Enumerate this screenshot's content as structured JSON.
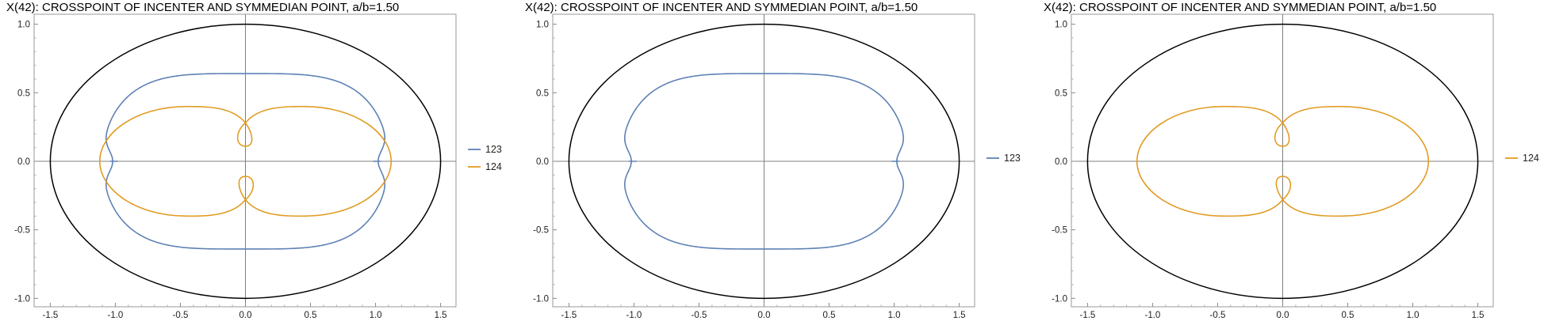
{
  "chart_data": [
    {
      "type": "line",
      "title": "X(42): CROSSPOINT OF INCENTER AND SYMMEDIAN POINT, a/b=1.50",
      "xlim": [
        -1.6,
        1.6
      ],
      "ylim": [
        -1.05,
        1.05
      ],
      "xticks": [
        "-1.5",
        "-1.0",
        "-0.5",
        "0.0",
        "0.5",
        "1.0",
        "1.5"
      ],
      "yticks": [
        "-1.0",
        "-0.5",
        "0.0",
        "0.5",
        "1.0"
      ],
      "ellipse": {
        "a": 1.5,
        "b": 1.0
      },
      "grid": false,
      "legend_position": "right",
      "series": [
        {
          "name": "123",
          "color": "#5e81b5",
          "shape": "oval-with-cusps",
          "half_width": 1.1,
          "half_height": 0.64
        },
        {
          "name": "124",
          "color": "#e19c24",
          "shape": "figure-eight-with-loops",
          "half_width": 1.12,
          "lobe_height": 0.4,
          "crossing_y": 0.28,
          "loop_tip_y": 0.11
        }
      ]
    },
    {
      "type": "line",
      "title": "X(42): CROSSPOINT OF INCENTER AND SYMMEDIAN POINT, a/b=1.50",
      "xlim": [
        -1.6,
        1.6
      ],
      "ylim": [
        -1.05,
        1.05
      ],
      "xticks": [
        "-1.5",
        "-1.0",
        "-0.5",
        "0.0",
        "0.5",
        "1.0",
        "1.5"
      ],
      "yticks": [
        "-1.0",
        "-0.5",
        "0.0",
        "0.5",
        "1.0"
      ],
      "ellipse": {
        "a": 1.5,
        "b": 1.0
      },
      "grid": false,
      "legend_position": "right",
      "series": [
        {
          "name": "123",
          "color": "#5e81b5",
          "shape": "oval-with-cusps",
          "half_width": 1.1,
          "half_height": 0.64
        }
      ]
    },
    {
      "type": "line",
      "title": "X(42): CROSSPOINT OF INCENTER AND SYMMEDIAN POINT, a/b=1.50",
      "xlim": [
        -1.6,
        1.6
      ],
      "ylim": [
        -1.05,
        1.05
      ],
      "xticks": [
        "-1.5",
        "-1.0",
        "-0.5",
        "0.0",
        "0.5",
        "1.0",
        "1.5"
      ],
      "yticks": [
        "-1.0",
        "-0.5",
        "0.0",
        "0.5",
        "1.0"
      ],
      "ellipse": {
        "a": 1.5,
        "b": 1.0
      },
      "grid": false,
      "legend_position": "right",
      "series": [
        {
          "name": "124",
          "color": "#e19c24",
          "shape": "figure-eight-with-loops",
          "half_width": 1.12,
          "lobe_height": 0.4,
          "crossing_y": 0.28,
          "loop_tip_y": 0.11
        }
      ]
    }
  ]
}
